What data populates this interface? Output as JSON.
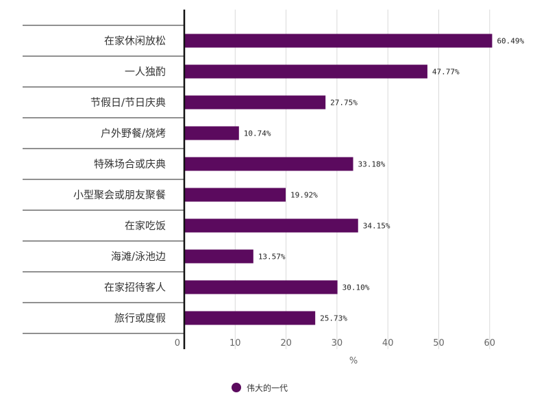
{
  "chart_data": {
    "type": "bar",
    "orientation": "horizontal",
    "categories": [
      "在家休闲放松",
      "一人独酌",
      "节假日/节日庆典",
      "户外野餐/烧烤",
      "特殊场合或庆典",
      "小型聚会或朋友聚餐",
      "在家吃饭",
      "海滩/泳池边",
      "在家招待客人",
      "旅行或度假"
    ],
    "series": [
      {
        "name": "伟大的一代",
        "values": [
          60.49,
          47.77,
          27.75,
          10.74,
          33.18,
          19.92,
          34.15,
          13.57,
          30.1,
          25.73
        ],
        "value_labels": [
          "60.49%",
          "47.77%",
          "27.75%",
          "10.74%",
          "33.18%",
          "19.92%",
          "34.15%",
          "13.57%",
          "30.10%",
          "25.73%"
        ],
        "color": "#5b0a5e"
      }
    ],
    "xlim": [
      0,
      60
    ],
    "x_ticks": [
      "0",
      "10",
      "20",
      "30",
      "40",
      "50",
      "60"
    ],
    "xlabel": "%",
    "ylabel": "",
    "title": "",
    "grid": true,
    "legend_position": "bottom-center"
  }
}
